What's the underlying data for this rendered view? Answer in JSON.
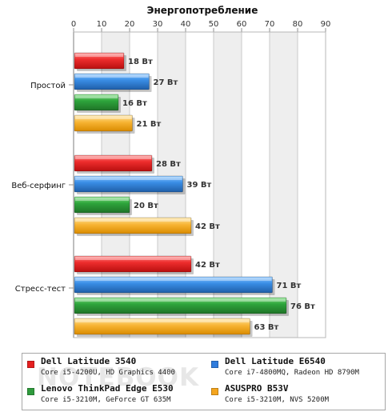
{
  "chart_data": {
    "type": "bar",
    "orientation": "horizontal",
    "title": "Энергопотребление",
    "xlim": [
      0,
      90
    ],
    "xticks": [
      0,
      10,
      20,
      30,
      40,
      50,
      60,
      70,
      80,
      90
    ],
    "grid": true,
    "categories": [
      "Простой",
      "Веб-серфинг",
      "Стресс-тест"
    ],
    "series": [
      {
        "name": "Dell Latitude 3540",
        "description": "Core i5-4200U, HD Graphics 4400",
        "color": "#e51f1f",
        "values": [
          18,
          28,
          42
        ]
      },
      {
        "name": "Dell Latitude E6540",
        "description": "Core i7-4800MQ, Radeon HD 8790M",
        "color": "#2f7cdd",
        "values": [
          27,
          39,
          71
        ]
      },
      {
        "name": "Lenovo ThinkPad Edge E530",
        "description": "Core i5-3210M, GeForce GT 635M",
        "color": "#2f9b3d",
        "values": [
          16,
          20,
          76
        ]
      },
      {
        "name": "ASUSPRO B53V",
        "description": "Core i5-3210M, NVS 5200M",
        "color": "#f4a51e",
        "values": [
          21,
          42,
          63
        ]
      }
    ],
    "data_labels": [
      [
        "18 Вт",
        "28 Вт",
        "42 Вт"
      ],
      [
        "27 Вт",
        "39 Вт",
        "71 Вт"
      ],
      [
        "16 Вт",
        "20 Вт",
        "76 Вт"
      ],
      [
        "21 Вт",
        "42 Вт",
        "63 Вт"
      ]
    ],
    "legend_placement": "bottom"
  },
  "watermark": {
    "text": "NOTEBOOK"
  }
}
